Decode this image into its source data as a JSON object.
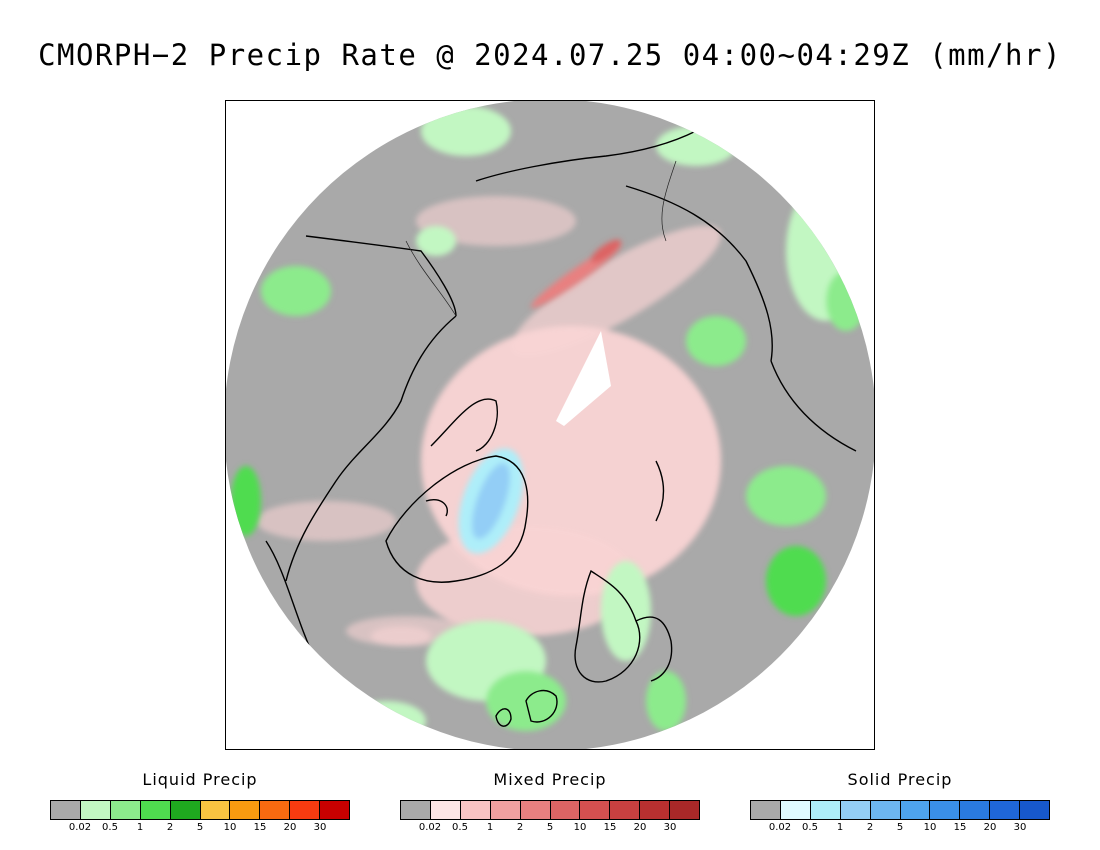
{
  "title": "CMORPH−2 Precip Rate @ 2024.07.25 04:00~04:29Z (mm/hr)",
  "map": {
    "projection": "north-polar-stereographic",
    "no_precip_color": "#a9a9a9",
    "coast_color": "#000000"
  },
  "legends": [
    {
      "title": "Liquid Precip",
      "colors": [
        "#a9a9a9",
        "#c2f7c2",
        "#8ceb8c",
        "#4fdc4f",
        "#1fa81f",
        "#f9c341",
        "#f99b10",
        "#f86a10",
        "#f73b10",
        "#c80000"
      ],
      "tick_labels": [
        "0.02",
        "0.5",
        "1",
        "2",
        "5",
        "10",
        "15",
        "20",
        "30"
      ]
    },
    {
      "title": "Mixed Precip",
      "colors": [
        "#a9a9a9",
        "#fde6e6",
        "#f9c4c4",
        "#f0a0a0",
        "#e88080",
        "#dd6464",
        "#d45050",
        "#c84040",
        "#b83030",
        "#a82828"
      ],
      "tick_labels": [
        "0.02",
        "0.5",
        "1",
        "2",
        "5",
        "10",
        "15",
        "20",
        "30"
      ]
    },
    {
      "title": "Solid Precip",
      "colors": [
        "#a9a9a9",
        "#e0fbff",
        "#aeeef9",
        "#93cef6",
        "#6db6f0",
        "#4ea4ee",
        "#3a8fe8",
        "#2a7ae0",
        "#1f66d8",
        "#1758cc"
      ],
      "tick_labels": [
        "0.02",
        "0.5",
        "1",
        "2",
        "5",
        "10",
        "15",
        "20",
        "30"
      ]
    }
  ]
}
